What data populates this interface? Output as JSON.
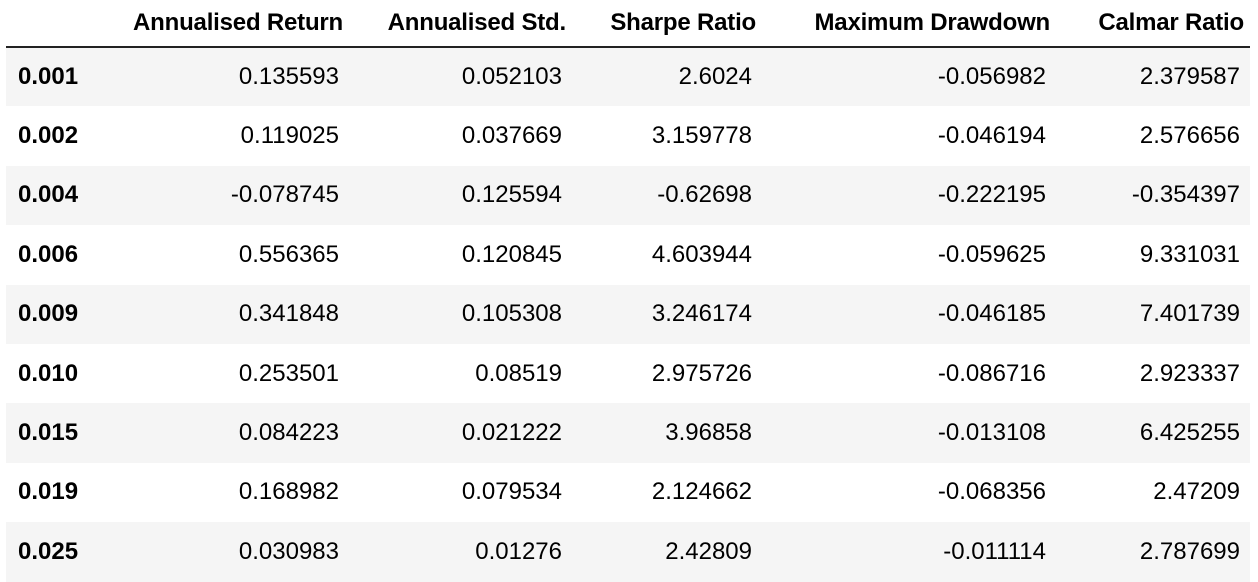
{
  "table": {
    "index_header": "",
    "columns": [
      "Annualised Return",
      "Annualised Std.",
      "Sharpe Ratio",
      "Maximum Drawdown",
      "Calmar Ratio"
    ],
    "rows": [
      {
        "index": "0.001",
        "cells": [
          "0.135593",
          "0.052103",
          "2.6024",
          "-0.056982",
          "2.379587"
        ]
      },
      {
        "index": "0.002",
        "cells": [
          "0.119025",
          "0.037669",
          "3.159778",
          "-0.046194",
          "2.576656"
        ]
      },
      {
        "index": "0.004",
        "cells": [
          "-0.078745",
          "0.125594",
          "-0.62698",
          "-0.222195",
          "-0.354397"
        ]
      },
      {
        "index": "0.006",
        "cells": [
          "0.556365",
          "0.120845",
          "4.603944",
          "-0.059625",
          "9.331031"
        ]
      },
      {
        "index": "0.009",
        "cells": [
          "0.341848",
          "0.105308",
          "3.246174",
          "-0.046185",
          "7.401739"
        ]
      },
      {
        "index": "0.010",
        "cells": [
          "0.253501",
          "0.08519",
          "2.975726",
          "-0.086716",
          "2.923337"
        ]
      },
      {
        "index": "0.015",
        "cells": [
          "0.084223",
          "0.021222",
          "3.96858",
          "-0.013108",
          "6.425255"
        ]
      },
      {
        "index": "0.019",
        "cells": [
          "0.168982",
          "0.079534",
          "2.124662",
          "-0.068356",
          "2.47209"
        ]
      },
      {
        "index": "0.025",
        "cells": [
          "0.030983",
          "0.01276",
          "2.42809",
          "-0.011114",
          "2.787699"
        ]
      }
    ]
  },
  "colors": {
    "stripe": "#f5f5f5",
    "background": "#ffffff",
    "header_rule": "#222222",
    "text": "#000000"
  }
}
